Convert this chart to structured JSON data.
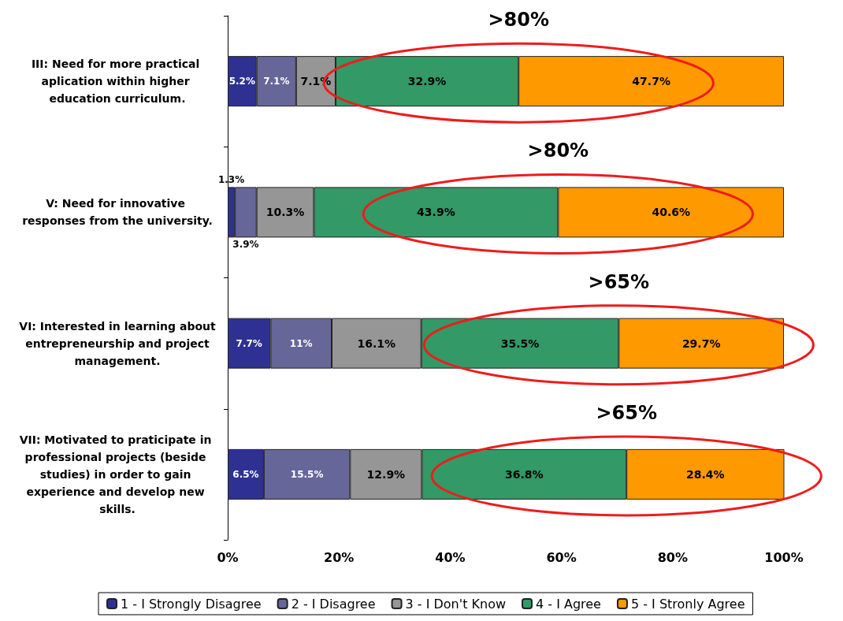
{
  "chart_data": {
    "type": "bar",
    "orientation": "horizontal",
    "stacked": true,
    "categories": [
      "III: Need for more practical aplication within higher education curriculum.",
      "V: Need for innovative responses from the university.",
      "VI: Interested in learning about entrepreneurship and project management.",
      "VII: Motivated to praticipate in professional projects (beside studies) in order to gain experience and develop new skills."
    ],
    "series": [
      {
        "name": "1 - I Strongly Disagree",
        "color": "#2e3192",
        "values": [
          5.2,
          1.3,
          7.7,
          6.5
        ],
        "value_labels": [
          "5.2%",
          "1.3%",
          "7.7%",
          "6.5%"
        ]
      },
      {
        "name": "2 - I Disagree",
        "color": "#666699",
        "values": [
          7.1,
          3.9,
          11,
          15.5
        ],
        "value_labels": [
          "7.1%",
          "3.9%",
          "11%",
          "15.5%"
        ]
      },
      {
        "name": "3 - I Don't Know",
        "color": "#969696",
        "values": [
          7.1,
          10.3,
          16.1,
          12.9
        ],
        "value_labels": [
          "7.1%",
          "10.3%",
          "16.1%",
          "12.9%"
        ]
      },
      {
        "name": "4 - I Agree",
        "color": "#339966",
        "values": [
          32.9,
          43.9,
          35.5,
          36.8
        ],
        "value_labels": [
          "32.9%",
          "43.9%",
          "35.5%",
          "36.8%"
        ]
      },
      {
        "name": "5 - I Stronly Agree",
        "color": "#ff9900",
        "values": [
          47.7,
          40.6,
          29.7,
          28.4
        ],
        "value_labels": [
          "47.7%",
          "40.6%",
          "29.7%",
          "28.4%"
        ]
      }
    ],
    "xlim": [
      0,
      100
    ],
    "xticks": [
      {
        "value": 0,
        "label": "0%"
      },
      {
        "value": 20,
        "label": "20%"
      },
      {
        "value": 40,
        "label": "40%"
      },
      {
        "value": 60,
        "label": "60%"
      },
      {
        "value": 80,
        "label": "80%"
      },
      {
        "value": 100,
        "label": "100%"
      }
    ],
    "grid": false,
    "legend": "bottom",
    "annotations": [
      ">80%",
      ">80%",
      ">65%",
      ">65%"
    ]
  }
}
